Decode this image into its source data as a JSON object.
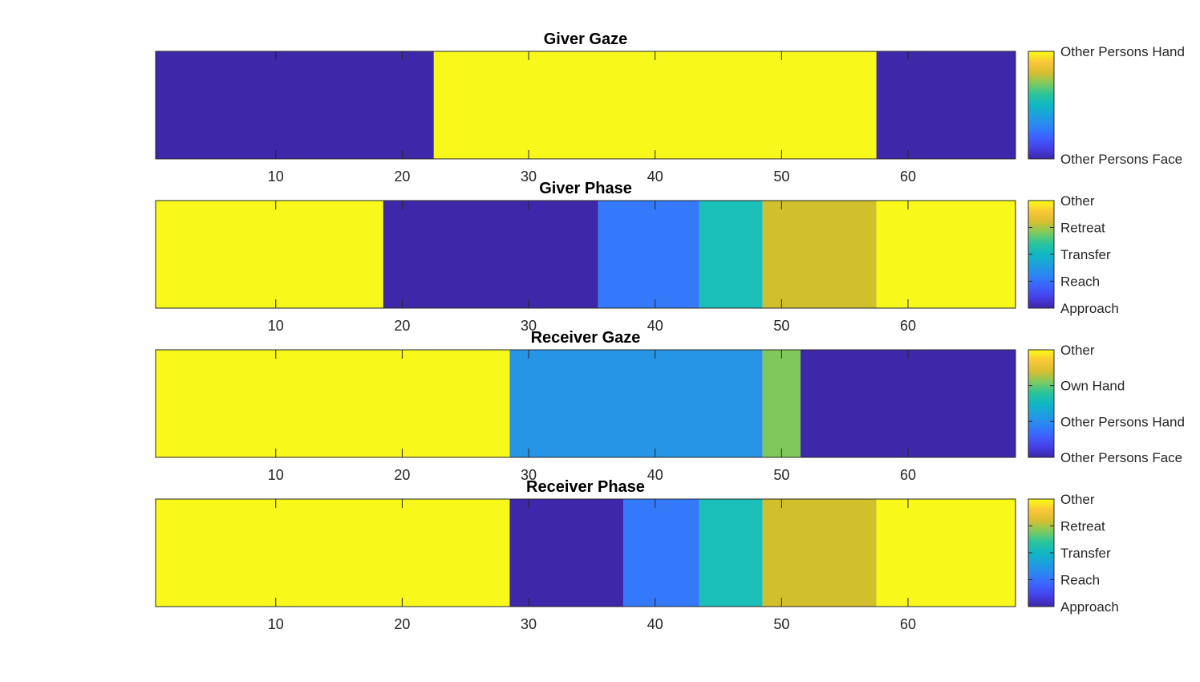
{
  "colors": {
    "approach_or_face": "#3e27a8",
    "reach": "#3479fa",
    "transfer": "#1abfb9",
    "retreat": "#d2bf2c",
    "other_or_hand": "#f8f91a",
    "other_persons_hand_rg": "#2795e6",
    "own_hand": "#7ec95a",
    "axis": "#262626"
  },
  "chart_data": [
    {
      "type": "heatmap",
      "title": "Giver Gaze",
      "xlabel": "",
      "ylabel": "",
      "xlim": [
        0.5,
        68.5
      ],
      "xticks": [
        10,
        20,
        30,
        40,
        50,
        60
      ],
      "xtick_labels": [
        "10",
        "20",
        "30",
        "40",
        "50",
        "60"
      ],
      "colormap": "parula",
      "colorbar": {
        "labels": [
          "Other Persons Face",
          "Other Persons Hand"
        ],
        "values": [
          0,
          1
        ],
        "range": [
          0,
          1
        ]
      },
      "segments": [
        {
          "start": 0.5,
          "end": 22.5,
          "label": "Other Persons Face",
          "value": 0,
          "color": "#3e27a8"
        },
        {
          "start": 22.5,
          "end": 57.5,
          "label": "Other Persons Hand",
          "value": 1,
          "color": "#f8f91a"
        },
        {
          "start": 57.5,
          "end": 68.5,
          "label": "Other Persons Face",
          "value": 0,
          "color": "#3e27a8"
        }
      ]
    },
    {
      "type": "heatmap",
      "title": "Giver Phase",
      "xlabel": "",
      "ylabel": "",
      "xlim": [
        0.5,
        68.5
      ],
      "xticks": [
        10,
        20,
        30,
        40,
        50,
        60
      ],
      "xtick_labels": [
        "10",
        "20",
        "30",
        "40",
        "50",
        "60"
      ],
      "colormap": "parula",
      "colorbar": {
        "labels": [
          "Approach",
          "Reach",
          "Transfer",
          "Retreat",
          "Other"
        ],
        "values": [
          0,
          1,
          2,
          3,
          4
        ],
        "range": [
          0,
          4
        ]
      },
      "segments": [
        {
          "start": 0.5,
          "end": 18.5,
          "label": "Other",
          "value": 4,
          "color": "#f8f91a"
        },
        {
          "start": 18.5,
          "end": 35.5,
          "label": "Approach",
          "value": 0,
          "color": "#3e27a8"
        },
        {
          "start": 35.5,
          "end": 43.5,
          "label": "Reach",
          "value": 1,
          "color": "#3479fa"
        },
        {
          "start": 43.5,
          "end": 48.5,
          "label": "Transfer",
          "value": 2,
          "color": "#1abfb9"
        },
        {
          "start": 48.5,
          "end": 57.5,
          "label": "Retreat",
          "value": 3,
          "color": "#d2bf2c"
        },
        {
          "start": 57.5,
          "end": 68.5,
          "label": "Other",
          "value": 4,
          "color": "#f8f91a"
        }
      ]
    },
    {
      "type": "heatmap",
      "title": "Receiver Gaze",
      "xlabel": "",
      "ylabel": "",
      "xlim": [
        0.5,
        68.5
      ],
      "xticks": [
        10,
        20,
        30,
        40,
        50,
        60
      ],
      "xtick_labels": [
        "10",
        "20",
        "30",
        "40",
        "50",
        "60"
      ],
      "colormap": "parula",
      "colorbar": {
        "labels": [
          "Other Persons Face",
          "Other Persons Hand",
          "Own Hand",
          "Other"
        ],
        "values": [
          0,
          1,
          2,
          3
        ],
        "range": [
          0,
          3
        ]
      },
      "segments": [
        {
          "start": 0.5,
          "end": 28.5,
          "label": "Other",
          "value": 3,
          "color": "#f8f91a"
        },
        {
          "start": 28.5,
          "end": 48.5,
          "label": "Other Persons Hand",
          "value": 1,
          "color": "#2795e6"
        },
        {
          "start": 48.5,
          "end": 51.5,
          "label": "Own Hand",
          "value": 2,
          "color": "#7ec95a"
        },
        {
          "start": 51.5,
          "end": 68.5,
          "label": "Other Persons Face",
          "value": 0,
          "color": "#3e27a8"
        }
      ]
    },
    {
      "type": "heatmap",
      "title": "Receiver Phase",
      "xlabel": "",
      "ylabel": "",
      "xlim": [
        0.5,
        68.5
      ],
      "xticks": [
        10,
        20,
        30,
        40,
        50,
        60
      ],
      "xtick_labels": [
        "10",
        "20",
        "30",
        "40",
        "50",
        "60"
      ],
      "colormap": "parula",
      "colorbar": {
        "labels": [
          "Approach",
          "Reach",
          "Transfer",
          "Retreat",
          "Other"
        ],
        "values": [
          0,
          1,
          2,
          3,
          4
        ],
        "range": [
          0,
          4
        ]
      },
      "segments": [
        {
          "start": 0.5,
          "end": 28.5,
          "label": "Other",
          "value": 4,
          "color": "#f8f91a"
        },
        {
          "start": 28.5,
          "end": 37.5,
          "label": "Approach",
          "value": 0,
          "color": "#3e27a8"
        },
        {
          "start": 37.5,
          "end": 43.5,
          "label": "Reach",
          "value": 1,
          "color": "#3479fa"
        },
        {
          "start": 43.5,
          "end": 48.5,
          "label": "Transfer",
          "value": 2,
          "color": "#1abfb9"
        },
        {
          "start": 48.5,
          "end": 57.5,
          "label": "Retreat",
          "value": 3,
          "color": "#d2bf2c"
        },
        {
          "start": 57.5,
          "end": 68.5,
          "label": "Other",
          "value": 4,
          "color": "#f8f91a"
        }
      ]
    }
  ]
}
